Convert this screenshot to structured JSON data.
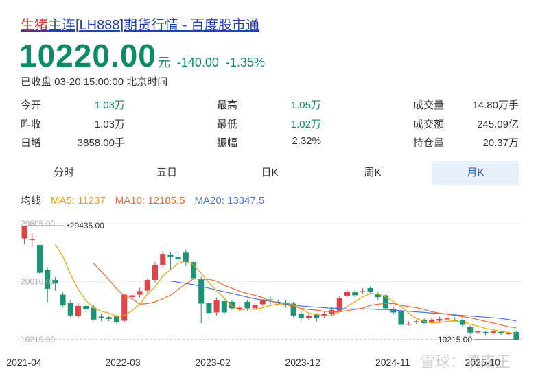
{
  "header": {
    "title_red": "生猪",
    "title_rest": "主连[LH888]期货行情 - 百度股市通"
  },
  "quote": {
    "price": "10220.00",
    "unit": "元",
    "change": "-140.00",
    "change_pct": "-1.35%",
    "status": "已收盘 03-20 15:00:00 北京时间"
  },
  "stats": [
    {
      "label": "今开",
      "value": "1.03万",
      "green": true
    },
    {
      "label": "最高",
      "value": "1.05万",
      "green": true
    },
    {
      "label": "成交量",
      "value": "14.80万手",
      "green": false
    },
    {
      "label": "昨收",
      "value": "1.03万",
      "green": false
    },
    {
      "label": "最低",
      "value": "1.02万",
      "green": true
    },
    {
      "label": "成交额",
      "value": "245.09亿",
      "green": false
    },
    {
      "label": "日增",
      "value": "3858.00手",
      "green": false
    },
    {
      "label": "振幅",
      "value": "2.32%",
      "green": false
    },
    {
      "label": "持仓量",
      "value": "20.37万",
      "green": false
    }
  ],
  "tabs": [
    {
      "label": "分时",
      "active": false
    },
    {
      "label": "五日",
      "active": false
    },
    {
      "label": "日K",
      "active": false
    },
    {
      "label": "周K",
      "active": false
    },
    {
      "label": "月K",
      "active": true
    }
  ],
  "ma": {
    "label": "均线",
    "ma5": "MA5: 11237",
    "ma10": "MA10: 12185.5",
    "ma20": "MA20: 13347.5"
  },
  "colors": {
    "up": "#e0434a",
    "down": "#1a9475",
    "ma5": "#e8a200",
    "ma10": "#ee6a2b",
    "ma20": "#4a74e0"
  },
  "watermark": "雪球：滇南王",
  "chart_data": {
    "type": "candlestick",
    "y_ticks": [
      "29805.00",
      "20010.00",
      "10215.00"
    ],
    "y_range": [
      10215,
      29805
    ],
    "x_ticks": [
      "2021-04",
      "2022-03",
      "2023-02",
      "2023-12",
      "2024-11",
      "2025-10"
    ],
    "annotations": {
      "max_label": "29435.00",
      "min_label": "10215.00"
    },
    "candles": [
      {
        "o": 27300,
        "c": 29435,
        "h": 29435,
        "l": 26300
      },
      {
        "o": 27200,
        "c": 27200,
        "h": 28200,
        "l": 26000
      },
      {
        "o": 26200,
        "c": 21500,
        "h": 26300,
        "l": 21200
      },
      {
        "o": 22000,
        "c": 18800,
        "h": 22400,
        "l": 16500
      },
      {
        "o": 20300,
        "c": 19700,
        "h": 20800,
        "l": 18500
      },
      {
        "o": 17800,
        "c": 16000,
        "h": 18200,
        "l": 15700
      },
      {
        "o": 16400,
        "c": 14300,
        "h": 16900,
        "l": 14000
      },
      {
        "o": 14200,
        "c": 15900,
        "h": 16400,
        "l": 13900
      },
      {
        "o": 15900,
        "c": 15400,
        "h": 16200,
        "l": 14800
      },
      {
        "o": 15600,
        "c": 13600,
        "h": 16000,
        "l": 13400
      },
      {
        "o": 14100,
        "c": 13900,
        "h": 14600,
        "l": 13300
      },
      {
        "o": 14000,
        "c": 13700,
        "h": 14300,
        "l": 13300
      },
      {
        "o": 14200,
        "c": 13200,
        "h": 14400,
        "l": 12800
      },
      {
        "o": 13400,
        "c": 17800,
        "h": 18000,
        "l": 13100
      },
      {
        "o": 17400,
        "c": 17700,
        "h": 18100,
        "l": 16900
      },
      {
        "o": 17800,
        "c": 18400,
        "h": 19000,
        "l": 17300
      },
      {
        "o": 18500,
        "c": 20300,
        "h": 20600,
        "l": 18100
      },
      {
        "o": 20300,
        "c": 22800,
        "h": 23300,
        "l": 19800
      },
      {
        "o": 22800,
        "c": 24700,
        "h": 25200,
        "l": 22400
      },
      {
        "o": 24600,
        "c": 24200,
        "h": 25000,
        "l": 22100
      },
      {
        "o": 24200,
        "c": 23800,
        "h": 25200,
        "l": 23400
      },
      {
        "o": 24900,
        "c": 23300,
        "h": 25400,
        "l": 22600
      },
      {
        "o": 23300,
        "c": 20600,
        "h": 23600,
        "l": 20300
      },
      {
        "o": 20500,
        "c": 16300,
        "h": 20800,
        "l": 13000
      },
      {
        "o": 16400,
        "c": 14700,
        "h": 16900,
        "l": 13600
      },
      {
        "o": 14800,
        "c": 16900,
        "h": 17300,
        "l": 14300
      },
      {
        "o": 16700,
        "c": 14800,
        "h": 17300,
        "l": 14400
      },
      {
        "o": 16600,
        "c": 15500,
        "h": 16900,
        "l": 15200
      },
      {
        "o": 15300,
        "c": 15600,
        "h": 16100,
        "l": 15000
      },
      {
        "o": 16600,
        "c": 15500,
        "h": 16900,
        "l": 15100
      },
      {
        "o": 15500,
        "c": 16100,
        "h": 16400,
        "l": 15300
      },
      {
        "o": 16200,
        "c": 16900,
        "h": 17100,
        "l": 15900
      },
      {
        "o": 17000,
        "c": 16800,
        "h": 17500,
        "l": 16100
      },
      {
        "o": 16600,
        "c": 16400,
        "h": 17000,
        "l": 16100
      },
      {
        "o": 16500,
        "c": 16000,
        "h": 16900,
        "l": 15600
      },
      {
        "o": 16300,
        "c": 14300,
        "h": 16600,
        "l": 14000
      },
      {
        "o": 14600,
        "c": 13800,
        "h": 15000,
        "l": 13300
      },
      {
        "o": 13800,
        "c": 14200,
        "h": 14700,
        "l": 13500
      },
      {
        "o": 14500,
        "c": 13800,
        "h": 14700,
        "l": 13200
      },
      {
        "o": 14300,
        "c": 14600,
        "h": 15000,
        "l": 13900
      },
      {
        "o": 14600,
        "c": 15200,
        "h": 15700,
        "l": 14300
      },
      {
        "o": 15100,
        "c": 17200,
        "h": 17600,
        "l": 15000
      },
      {
        "o": 17600,
        "c": 18300,
        "h": 18700,
        "l": 17400
      },
      {
        "o": 18200,
        "c": 17700,
        "h": 18600,
        "l": 17400
      },
      {
        "o": 18300,
        "c": 18400,
        "h": 18900,
        "l": 17900
      },
      {
        "o": 18900,
        "c": 18300,
        "h": 19200,
        "l": 18000
      },
      {
        "o": 17900,
        "c": 17400,
        "h": 18200,
        "l": 16900
      },
      {
        "o": 17700,
        "c": 15500,
        "h": 17900,
        "l": 15200
      },
      {
        "o": 15400,
        "c": 14800,
        "h": 15800,
        "l": 14500
      },
      {
        "o": 15000,
        "c": 12700,
        "h": 15200,
        "l": 12300
      },
      {
        "o": 12900,
        "c": 12900,
        "h": 13300,
        "l": 12600
      },
      {
        "o": 13100,
        "c": 13300,
        "h": 13600,
        "l": 12900
      },
      {
        "o": 13500,
        "c": 13000,
        "h": 13800,
        "l": 12800
      },
      {
        "o": 13100,
        "c": 13600,
        "h": 14100,
        "l": 12900
      },
      {
        "o": 13400,
        "c": 13700,
        "h": 14100,
        "l": 13100
      },
      {
        "o": 13800,
        "c": 13800,
        "h": 15000,
        "l": 13500
      },
      {
        "o": 13500,
        "c": 13400,
        "h": 14000,
        "l": 13200
      },
      {
        "o": 13500,
        "c": 12700,
        "h": 13800,
        "l": 12300
      },
      {
        "o": 12400,
        "c": 11400,
        "h": 12600,
        "l": 11100
      },
      {
        "o": 11500,
        "c": 11600,
        "h": 11800,
        "l": 11100
      },
      {
        "o": 11500,
        "c": 11300,
        "h": 11700,
        "l": 10900
      },
      {
        "o": 11300,
        "c": 11600,
        "h": 11900,
        "l": 11000
      },
      {
        "o": 11500,
        "c": 11300,
        "h": 11800,
        "l": 11000
      },
      {
        "o": 11300,
        "c": 11300,
        "h": 11600,
        "l": 10900
      },
      {
        "o": 11500,
        "c": 10220,
        "h": 11600,
        "l": 10215
      }
    ],
    "ma5": [
      null,
      null,
      null,
      null,
      26300,
      24300,
      21200,
      18700,
      16800,
      15600,
      15000,
      14700,
      14100,
      14300,
      15100,
      16200,
      17900,
      19100,
      21000,
      22000,
      23100,
      23500,
      22800,
      21400,
      19800,
      18500,
      17200,
      15900,
      15200,
      15400,
      15300,
      15600,
      16000,
      16200,
      16400,
      16100,
      15400,
      14700,
      14400,
      14200,
      14300,
      14900,
      15800,
      16600,
      17400,
      18000,
      17900,
      17400,
      16700,
      15800,
      14700,
      13800,
      13300,
      13000,
      13100,
      13300,
      13400,
      13200,
      12800,
      12500,
      12100,
      11900,
      11600,
      11400,
      11200
    ],
    "ma10": [
      null,
      null,
      null,
      null,
      null,
      null,
      null,
      null,
      null,
      23100,
      21700,
      20300,
      18800,
      17600,
      17100,
      16200,
      16300,
      16600,
      17100,
      17700,
      18700,
      19600,
      20500,
      20400,
      20400,
      20100,
      19400,
      18900,
      18400,
      18000,
      17700,
      17300,
      16700,
      16400,
      16100,
      15800,
      15500,
      15300,
      15200,
      15000,
      14900,
      14900,
      15100,
      15300,
      15500,
      16000,
      16200,
      16300,
      16300,
      16000,
      15800,
      15600,
      15300,
      14900,
      14700,
      14500,
      14300,
      14100,
      13900,
      13600,
      13300,
      13000,
      12700,
      12400,
      12200
    ],
    "ma20": [
      null,
      null,
      null,
      null,
      null,
      null,
      null,
      null,
      null,
      null,
      null,
      null,
      null,
      null,
      null,
      null,
      null,
      null,
      null,
      20100,
      19900,
      19700,
      19500,
      19200,
      18900,
      18600,
      18300,
      18000,
      17700,
      17400,
      17100,
      16900,
      16700,
      16500,
      16300,
      16100,
      15900,
      15800,
      15700,
      15600,
      15500,
      15500,
      15400,
      15400,
      15400,
      15400,
      15300,
      15300,
      15200,
      15100,
      15000,
      14900,
      14800,
      14700,
      14600,
      14500,
      14400,
      14300,
      14200,
      14100,
      14000,
      13900,
      13800,
      13600,
      13350
    ]
  }
}
